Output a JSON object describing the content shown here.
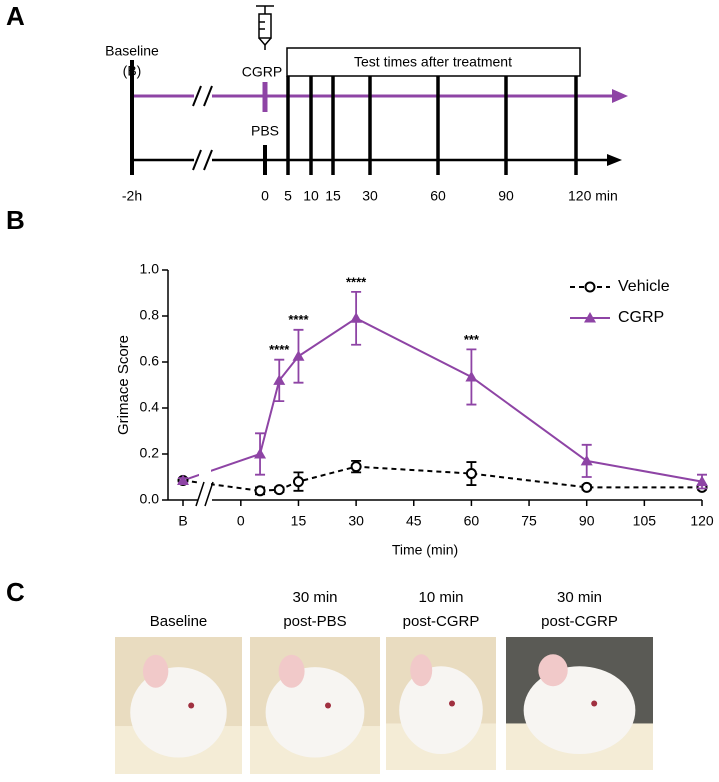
{
  "panel_labels": [
    "A",
    "B",
    "C"
  ],
  "timeline": {
    "baseline_label": [
      "Baseline",
      "(B)"
    ],
    "treatment_top": "CGRP",
    "treatment_bottom": "PBS",
    "box_label": "Test times after treatment",
    "time_labels": [
      "-2h",
      "0",
      "5",
      "10",
      "15",
      "30",
      "60",
      "90",
      "120 min"
    ]
  },
  "chart_data": {
    "type": "line",
    "y_label": "Grimace Score",
    "x_label": "Time (min)",
    "baseline_label": "B",
    "x": [
      5,
      10,
      15,
      30,
      60,
      90,
      120
    ],
    "xlim": [
      -7.5,
      120
    ],
    "xticks": [
      0,
      15,
      30,
      45,
      60,
      75,
      90,
      105,
      120
    ],
    "ylim": [
      0,
      1
    ],
    "yticks": [
      {
        "value": 0,
        "label": "0.0"
      },
      {
        "value": 0.2,
        "label": "0.2"
      },
      {
        "value": 0.4,
        "label": "0.4"
      },
      {
        "value": 0.6,
        "label": "0.6"
      },
      {
        "value": 0.8,
        "label": "0.8"
      },
      {
        "value": 1,
        "label": "1.0"
      }
    ],
    "legend": "upper right",
    "series": [
      {
        "name": "Vehicle",
        "color": "#000000",
        "dashed": true,
        "marker": "circle",
        "baseline": 0.085,
        "baseline_error": 0.01,
        "values": [
          0.04,
          0.045,
          0.08,
          0.145,
          0.115,
          0.055,
          0.055
        ],
        "errors": [
          0.015,
          0.01,
          0.04,
          0.025,
          0.05,
          0.01,
          0.01
        ]
      },
      {
        "name": "CGRP",
        "color": "#8e44a5",
        "dashed": false,
        "marker": "triangle",
        "baseline": 0.085,
        "baseline_error": 0.01,
        "values": [
          0.2,
          0.52,
          0.625,
          0.79,
          0.535,
          0.17,
          0.08
        ],
        "errors": [
          0.09,
          0.09,
          0.115,
          0.115,
          0.12,
          0.07,
          0.03
        ]
      }
    ],
    "annotations": [
      {
        "x": 10,
        "text": "****"
      },
      {
        "x": 15,
        "text": "****"
      },
      {
        "x": 30,
        "text": "****"
      },
      {
        "x": 60,
        "text": "***"
      }
    ]
  },
  "photos": [
    {
      "caption": [
        "Baseline"
      ]
    },
    {
      "caption": [
        "30 min",
        "post-PBS"
      ]
    },
    {
      "caption": [
        "10 min",
        "post-CGRP"
      ]
    },
    {
      "caption": [
        "30 min",
        "post-CGRP"
      ]
    }
  ]
}
